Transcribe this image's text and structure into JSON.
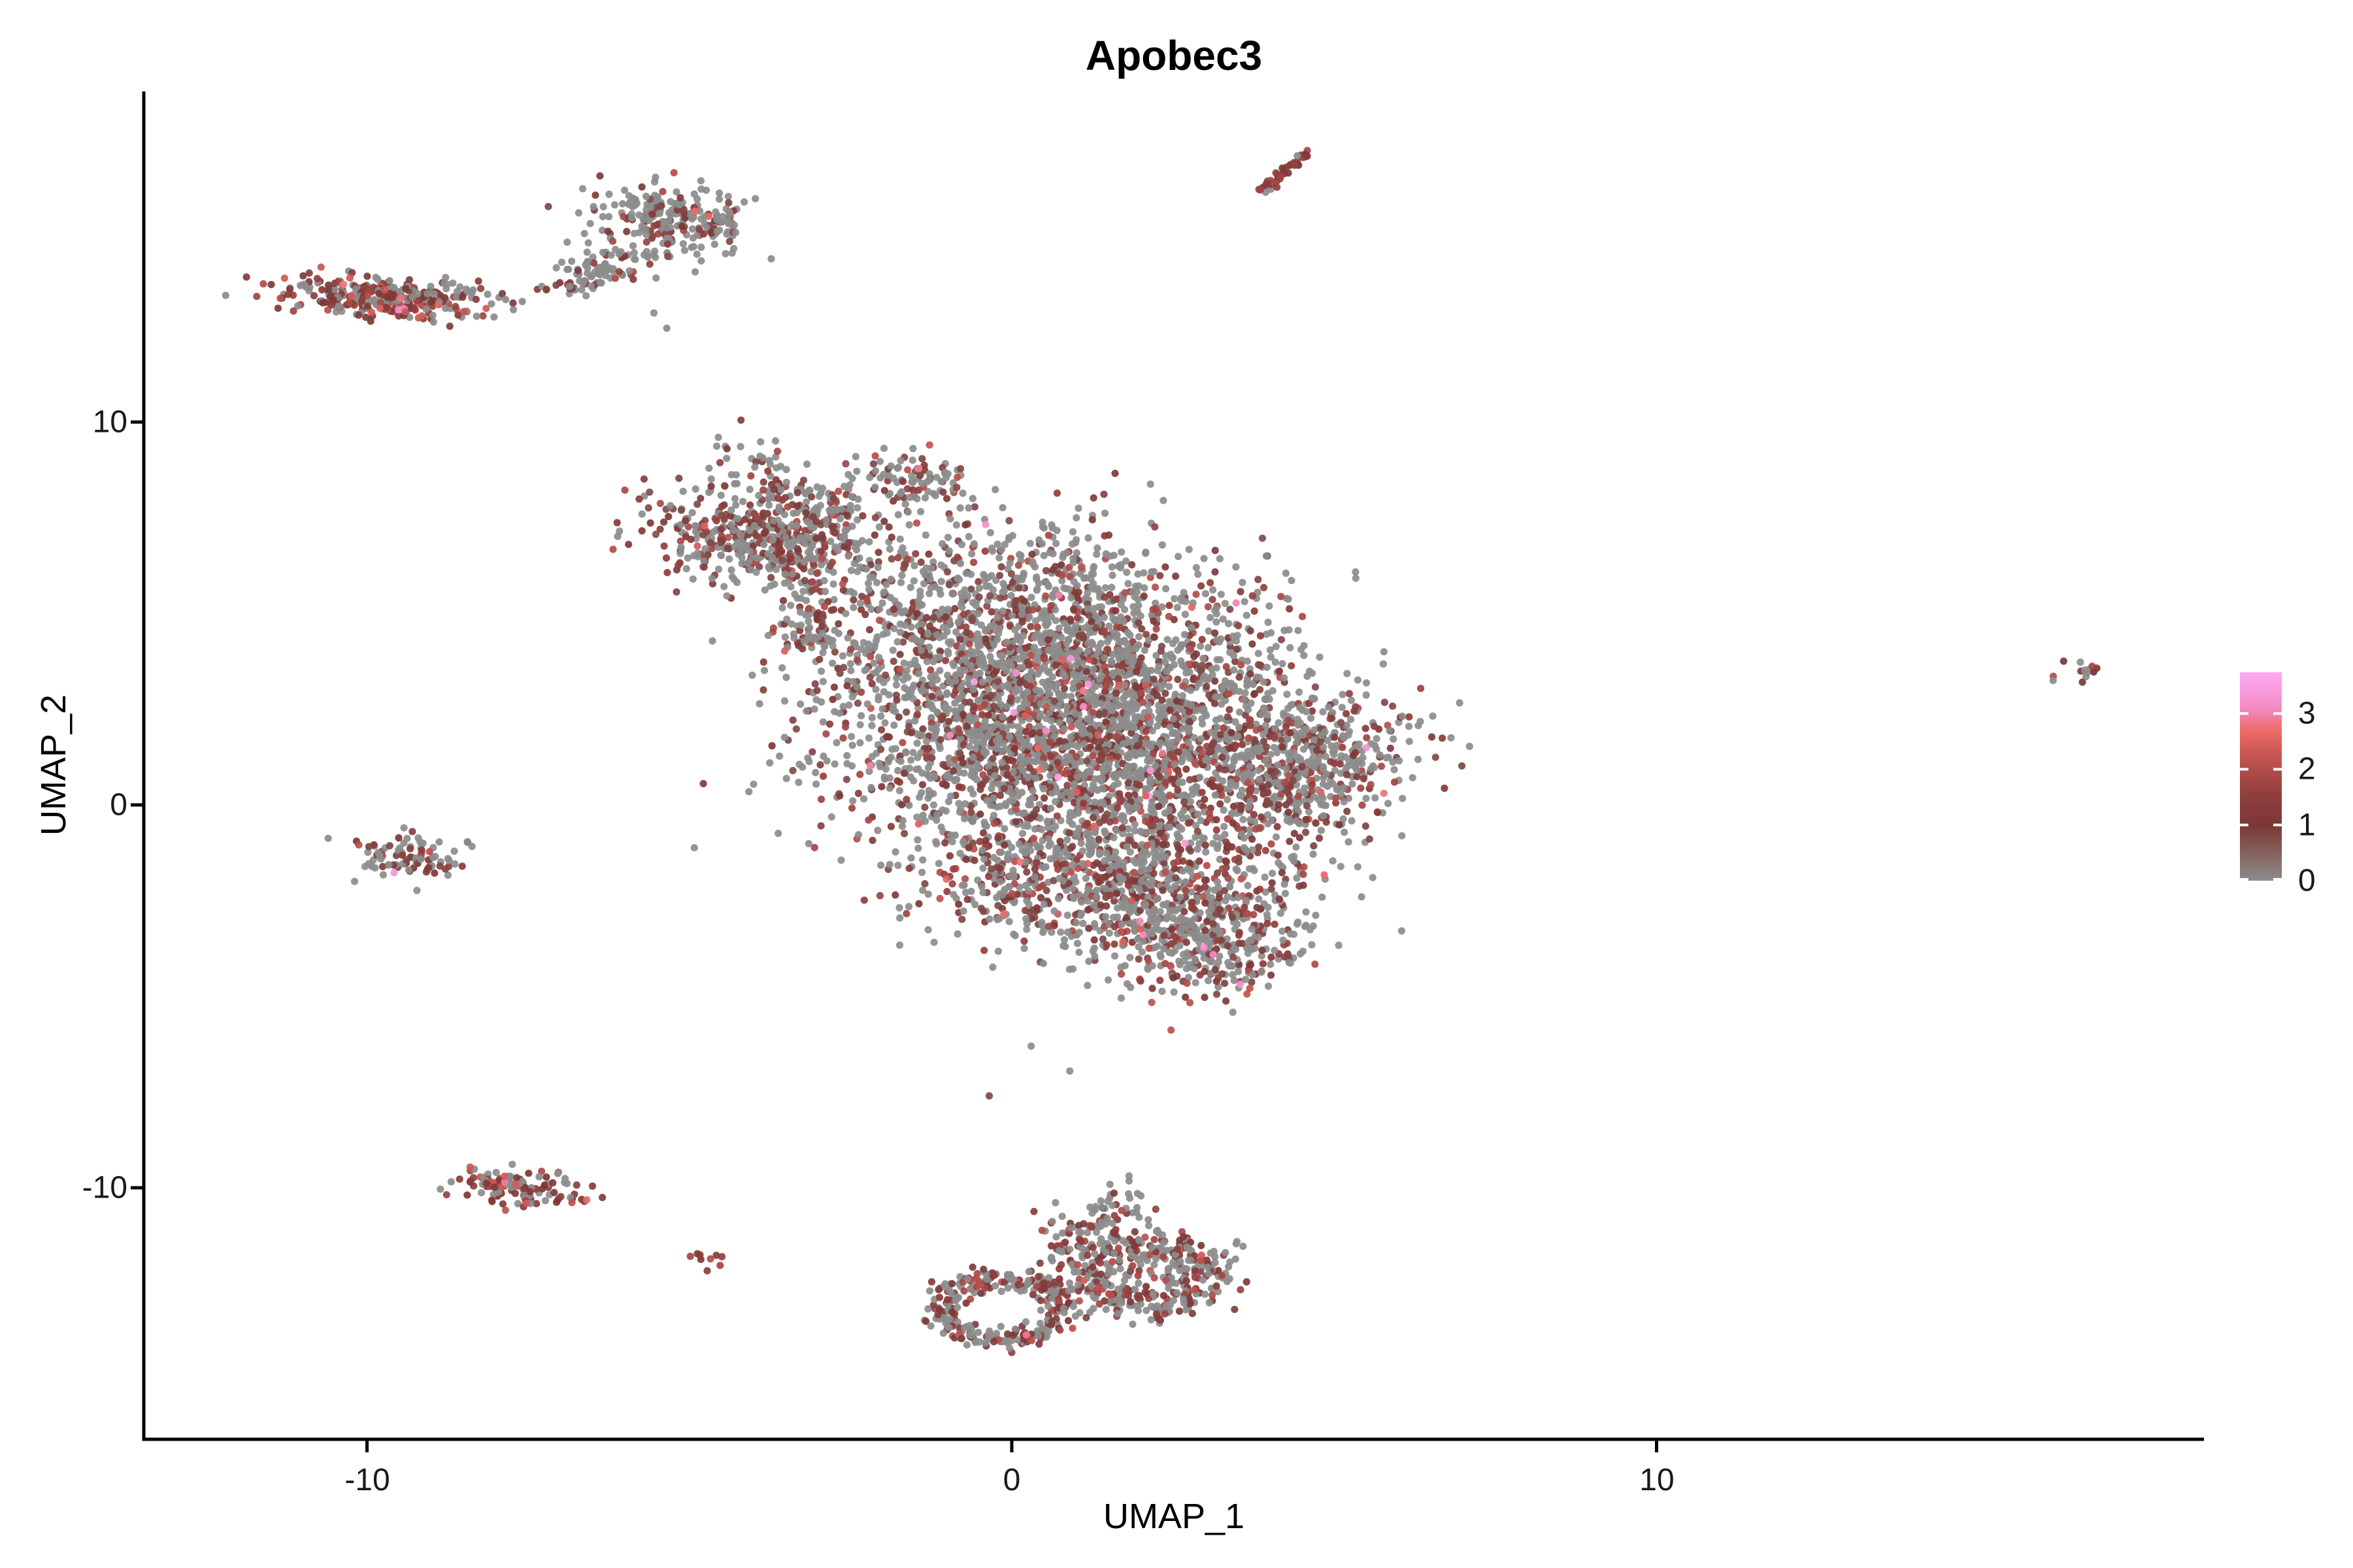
{
  "title": "Apobec3",
  "axes": {
    "x_label": "UMAP_1",
    "y_label": "UMAP_2",
    "x_ticks": [
      "-10",
      "0",
      "10"
    ],
    "y_ticks": [
      "10",
      "0",
      "-10"
    ]
  },
  "legend": {
    "tick_labels": [
      "3",
      "2",
      "1",
      "0"
    ],
    "tick_values": [
      3,
      2,
      1,
      0
    ],
    "value_max": 3.74
  },
  "chart_data": {
    "type": "scatter",
    "title": "Apobec3",
    "xlabel": "UMAP_1",
    "ylabel": "UMAP_2",
    "xlim": [
      -13.5,
      18.5
    ],
    "ylim": [
      -16.6,
      18.6
    ],
    "x_tick_values": [
      -10,
      0,
      10
    ],
    "y_tick_values": [
      10,
      0,
      -10
    ],
    "grid": false,
    "legend_position": "right",
    "point_radius_px": 5.6,
    "color_scale": {
      "description": "feature expression, grey = 0 to magenta-pink = max",
      "stops": [
        {
          "value": 0.0,
          "color": "#8C8C8C"
        },
        {
          "value": 0.5,
          "color": "#85615C"
        },
        {
          "value": 1.0,
          "color": "#7B3736"
        },
        {
          "value": 1.6,
          "color": "#93403E"
        },
        {
          "value": 2.2,
          "color": "#C25350"
        },
        {
          "value": 2.7,
          "color": "#EE6B68"
        },
        {
          "value": 3.1,
          "color": "#F48BC4"
        },
        {
          "value": 3.74,
          "color": "#FCAAF4"
        }
      ]
    },
    "clusters": [
      {
        "name": "top-left-bar",
        "shape": "gauss",
        "cx": -9.7,
        "cy": 13.25,
        "sx": 0.8,
        "sy": 0.26,
        "rot": -4,
        "n": 320,
        "p_expr": 0.62,
        "v_base": 0.9,
        "v_spread": 1.5,
        "p_bright": 0.04
      },
      {
        "name": "comma-main",
        "shape": "gauss",
        "cx": -5.2,
        "cy": 15.25,
        "sx": 0.62,
        "sy": 0.42,
        "rot": -12,
        "n": 240,
        "p_expr": 0.32,
        "v_base": 0.75,
        "v_spread": 1.3,
        "p_bright": 0.02
      },
      {
        "name": "comma-tail",
        "shape": "gauss",
        "cx": -6.25,
        "cy": 14.1,
        "sx": 0.42,
        "sy": 0.28,
        "rot": 38,
        "n": 75,
        "p_expr": 0.3,
        "v_base": 0.75,
        "v_spread": 1.2,
        "p_bright": 0.01
      },
      {
        "name": "comma-tip",
        "shape": "gauss",
        "cx": -6.85,
        "cy": 13.55,
        "sx": 0.22,
        "sy": 0.14,
        "rot": 30,
        "n": 28,
        "p_expr": 0.3,
        "v_base": 0.75,
        "v_spread": 1.1,
        "p_bright": 0.0
      },
      {
        "name": "streak-top-right",
        "shape": "line",
        "x1": 3.82,
        "y1": 16.0,
        "x2": 4.55,
        "y2": 16.95,
        "jitter": 0.07,
        "n": 42,
        "p_expr": 0.88,
        "v_base": 1.1,
        "v_spread": 0.9,
        "p_bright": 0.0
      },
      {
        "name": "blob-arm-nw",
        "shape": "gauss",
        "cx": -3.9,
        "cy": 6.85,
        "sx": 0.95,
        "sy": 0.55,
        "rot": -22,
        "n": 420,
        "p_expr": 0.42,
        "v_base": 0.75,
        "v_spread": 1.3,
        "p_bright": 0.02
      },
      {
        "name": "blob-arm-head",
        "shape": "gauss",
        "cx": -3.0,
        "cy": 7.6,
        "sx": 0.45,
        "sy": 0.45,
        "rot": 0,
        "n": 120,
        "p_expr": 0.45,
        "v_base": 0.8,
        "v_spread": 1.3,
        "p_bright": 0.02
      },
      {
        "name": "blob-arm-upper",
        "shape": "gauss",
        "cx": -3.9,
        "cy": 8.6,
        "sx": 0.35,
        "sy": 0.45,
        "rot": 0,
        "n": 50,
        "p_expr": 0.35,
        "v_base": 0.75,
        "v_spread": 1.2,
        "p_bright": 0.01
      },
      {
        "name": "blob-top-knob",
        "shape": "gauss",
        "cx": -1.6,
        "cy": 8.45,
        "sx": 0.5,
        "sy": 0.32,
        "rot": -10,
        "n": 95,
        "p_expr": 0.38,
        "v_base": 0.8,
        "v_spread": 1.3,
        "p_bright": 0.02
      },
      {
        "name": "blob-spur",
        "shape": "gauss",
        "cx": -3.15,
        "cy": 4.55,
        "sx": 0.3,
        "sy": 0.55,
        "rot": 14,
        "n": 65,
        "p_expr": 0.45,
        "v_base": 0.8,
        "v_spread": 1.2,
        "p_bright": 0.01
      },
      {
        "name": "blob-main-upper",
        "shape": "gauss",
        "cx": 0.35,
        "cy": 4.5,
        "sx": 1.75,
        "sy": 1.45,
        "rot": -16,
        "n": 1350,
        "p_expr": 0.36,
        "v_base": 0.75,
        "v_spread": 1.35,
        "p_bright": 0.02
      },
      {
        "name": "blob-main-core",
        "shape": "gauss",
        "cx": 1.45,
        "cy": 1.5,
        "sx": 1.95,
        "sy": 1.55,
        "rot": -20,
        "n": 2450,
        "p_expr": 0.37,
        "v_base": 0.75,
        "v_spread": 1.4,
        "p_bright": 0.025
      },
      {
        "name": "blob-left-sparse",
        "shape": "gauss",
        "cx": -1.1,
        "cy": 1.9,
        "sx": 0.85,
        "sy": 1.55,
        "rot": 0,
        "n": 210,
        "p_expr": 0.32,
        "v_base": 0.75,
        "v_spread": 1.3,
        "p_bright": 0.02
      },
      {
        "name": "blob-main-lower",
        "shape": "gauss",
        "cx": 1.3,
        "cy": -1.9,
        "sx": 1.3,
        "sy": 1.0,
        "rot": -12,
        "n": 800,
        "p_expr": 0.4,
        "v_base": 0.78,
        "v_spread": 1.35,
        "p_bright": 0.025
      },
      {
        "name": "blob-lower-knob",
        "shape": "gauss",
        "cx": 3.0,
        "cy": -3.55,
        "sx": 0.72,
        "sy": 0.72,
        "rot": 0,
        "n": 380,
        "p_expr": 0.42,
        "v_base": 0.8,
        "v_spread": 1.4,
        "p_bright": 0.03
      },
      {
        "name": "blob-right-edge",
        "shape": "gauss",
        "cx": 4.65,
        "cy": 0.9,
        "sx": 0.65,
        "sy": 0.95,
        "rot": -15,
        "n": 320,
        "p_expr": 0.38,
        "v_base": 0.78,
        "v_spread": 1.35,
        "p_bright": 0.025
      },
      {
        "name": "left-small",
        "shape": "gauss",
        "cx": -9.35,
        "cy": -1.35,
        "sx": 0.45,
        "sy": 0.3,
        "rot": -8,
        "n": 95,
        "p_expr": 0.45,
        "v_base": 0.8,
        "v_spread": 1.3,
        "p_bright": 0.03
      },
      {
        "name": "bottom-left-bar",
        "shape": "gauss",
        "cx": -7.7,
        "cy": -10.0,
        "sx": 0.5,
        "sy": 0.2,
        "rot": -8,
        "n": 125,
        "p_expr": 0.65,
        "v_base": 1.0,
        "v_spread": 1.4,
        "p_bright": 0.05
      },
      {
        "name": "tiny-mid-bottom",
        "shape": "gauss",
        "cx": -4.72,
        "cy": -11.9,
        "sx": 0.15,
        "sy": 0.12,
        "rot": 0,
        "n": 9,
        "p_expr": 0.8,
        "v_base": 1.1,
        "v_spread": 1.1,
        "p_bright": 0.05
      },
      {
        "name": "ring-bottom-left",
        "shape": "ring",
        "cx": -0.15,
        "cy": -13.15,
        "r": 0.95,
        "r_jitter": 0.17,
        "squash": 0.85,
        "n": 300,
        "p_expr": 0.45,
        "v_base": 0.85,
        "v_spread": 1.3,
        "p_bright": 0.02
      },
      {
        "name": "ring-bottom-right",
        "shape": "ring",
        "cx": 2.1,
        "cy": -12.3,
        "r": 0.9,
        "r_jitter": 0.3,
        "squash": 0.9,
        "n": 360,
        "p_expr": 0.45,
        "v_base": 0.85,
        "v_spread": 1.3,
        "p_bright": 0.02
      },
      {
        "name": "ring-bridge",
        "shape": "gauss",
        "cx": 1.0,
        "cy": -11.5,
        "sx": 0.3,
        "sy": 0.45,
        "rot": 20,
        "n": 60,
        "p_expr": 0.45,
        "v_base": 0.85,
        "v_spread": 1.2,
        "p_bright": 0.01
      },
      {
        "name": "ring-top-spur",
        "shape": "gauss",
        "cx": 1.65,
        "cy": -10.7,
        "sx": 0.3,
        "sy": 0.45,
        "rot": -15,
        "n": 55,
        "p_expr": 0.4,
        "v_base": 0.8,
        "v_spread": 1.2,
        "p_bright": 0.02
      },
      {
        "name": "far-right-tiny",
        "shape": "gauss",
        "cx": 16.6,
        "cy": 3.5,
        "sx": 0.2,
        "sy": 0.14,
        "rot": -25,
        "n": 13,
        "p_expr": 0.75,
        "v_base": 1.0,
        "v_spread": 1.0,
        "p_bright": 0.0
      }
    ],
    "stray_points": [
      {
        "x": -7.85,
        "y": 13.2,
        "v": 0
      },
      {
        "x": -5.55,
        "y": 12.85,
        "v": 0
      },
      {
        "x": -5.35,
        "y": 12.45,
        "v": 0
      },
      {
        "x": -4.55,
        "y": 9.6,
        "v": 0
      },
      {
        "x": -4.2,
        "y": 10.05,
        "v": 0.9
      },
      {
        "x": 0.3,
        "y": -6.3,
        "v": 0
      },
      {
        "x": 0.9,
        "y": -6.95,
        "v": 0
      },
      {
        "x": -0.35,
        "y": -7.6,
        "v": 0.8
      },
      {
        "x": 1.95,
        "y": -10.15,
        "v": 0
      },
      {
        "x": 0.45,
        "y": -13.2,
        "v": 0
      },
      {
        "x": 16.15,
        "y": 3.25,
        "v": 0
      }
    ]
  }
}
